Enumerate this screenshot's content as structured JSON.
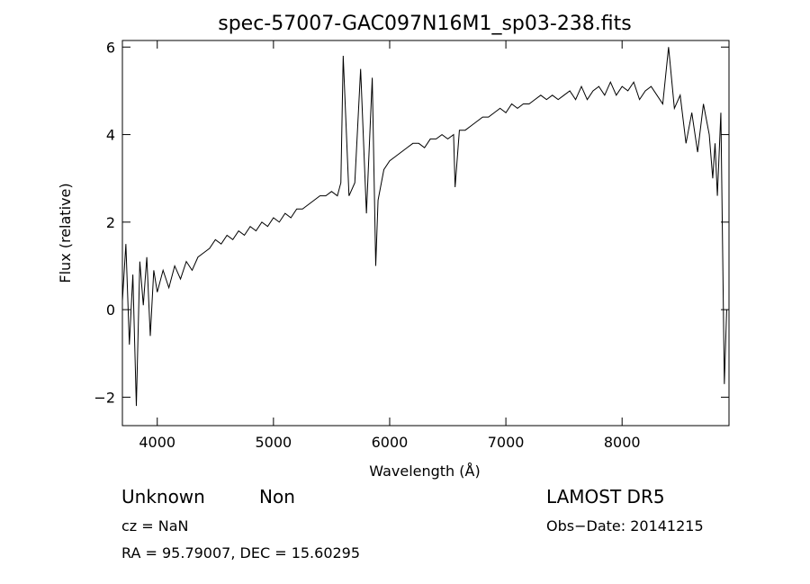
{
  "chart_data": {
    "type": "line",
    "title": "spec-57007-GAC097N16M1_sp03-238.fits",
    "xlabel": "Wavelength (Å)",
    "ylabel": "Flux (relative)",
    "xlim": [
      3700,
      8920
    ],
    "ylim": [
      -2.65,
      6.15
    ],
    "x_ticks": [
      {
        "value": 4000,
        "label": "4000"
      },
      {
        "value": 5000,
        "label": "5000"
      },
      {
        "value": 6000,
        "label": "6000"
      },
      {
        "value": 7000,
        "label": "7000"
      },
      {
        "value": 8000,
        "label": "8000"
      }
    ],
    "y_ticks": [
      {
        "value": -2,
        "label": "−2"
      },
      {
        "value": 0,
        "label": "0"
      },
      {
        "value": 2,
        "label": "2"
      },
      {
        "value": 4,
        "label": "4"
      },
      {
        "value": 6,
        "label": "6"
      }
    ],
    "grid": false,
    "series": [
      {
        "color": "#000000",
        "x": [
          3700,
          3730,
          3760,
          3790,
          3820,
          3850,
          3880,
          3910,
          3940,
          3970,
          4000,
          4050,
          4100,
          4150,
          4200,
          4250,
          4300,
          4350,
          4400,
          4450,
          4500,
          4550,
          4600,
          4650,
          4700,
          4750,
          4800,
          4850,
          4900,
          4950,
          5000,
          5050,
          5100,
          5150,
          5200,
          5250,
          5300,
          5350,
          5400,
          5450,
          5500,
          5550,
          5580,
          5600,
          5650,
          5700,
          5750,
          5800,
          5850,
          5880,
          5900,
          5950,
          6000,
          6050,
          6100,
          6150,
          6200,
          6250,
          6300,
          6350,
          6400,
          6450,
          6500,
          6550,
          6563,
          6600,
          6650,
          6700,
          6750,
          6800,
          6850,
          6900,
          6950,
          7000,
          7050,
          7100,
          7150,
          7200,
          7250,
          7300,
          7350,
          7400,
          7450,
          7500,
          7550,
          7600,
          7650,
          7700,
          7750,
          7800,
          7850,
          7900,
          7950,
          8000,
          8050,
          8100,
          8150,
          8200,
          8250,
          8300,
          8350,
          8400,
          8450,
          8500,
          8550,
          8600,
          8650,
          8700,
          8750,
          8780,
          8800,
          8820,
          8850,
          8880,
          8900
        ],
        "values": [
          0.2,
          1.5,
          -0.8,
          0.8,
          -2.2,
          1.1,
          0.1,
          1.2,
          -0.6,
          0.9,
          0.4,
          0.9,
          0.5,
          1.0,
          0.7,
          1.1,
          0.9,
          1.2,
          1.3,
          1.4,
          1.6,
          1.5,
          1.7,
          1.6,
          1.8,
          1.7,
          1.9,
          1.8,
          2.0,
          1.9,
          2.1,
          2.0,
          2.2,
          2.1,
          2.3,
          2.3,
          2.4,
          2.5,
          2.6,
          2.6,
          2.7,
          2.6,
          2.9,
          5.8,
          2.6,
          2.9,
          5.5,
          2.2,
          5.3,
          1.0,
          2.5,
          3.2,
          3.4,
          3.5,
          3.6,
          3.7,
          3.8,
          3.8,
          3.7,
          3.9,
          3.9,
          4.0,
          3.9,
          4.0,
          2.8,
          4.1,
          4.1,
          4.2,
          4.3,
          4.4,
          4.4,
          4.5,
          4.6,
          4.5,
          4.7,
          4.6,
          4.7,
          4.7,
          4.8,
          4.9,
          4.8,
          4.9,
          4.8,
          4.9,
          5.0,
          4.8,
          5.1,
          4.8,
          5.0,
          5.1,
          4.9,
          5.2,
          4.9,
          5.1,
          5.0,
          5.2,
          4.8,
          5.0,
          5.1,
          4.9,
          4.7,
          6.0,
          4.6,
          4.9,
          3.8,
          4.5,
          3.6,
          4.7,
          4.0,
          3.0,
          3.8,
          2.6,
          4.5,
          -1.7,
          0.0
        ]
      }
    ]
  },
  "info": {
    "object_class": "Unknown",
    "object_subclass": "Non",
    "survey": "LAMOST DR5",
    "cz": "cz = NaN",
    "obs_date": "Obs−Date: 20141215",
    "coords": "RA =  95.79007, DEC =  15.60295"
  }
}
